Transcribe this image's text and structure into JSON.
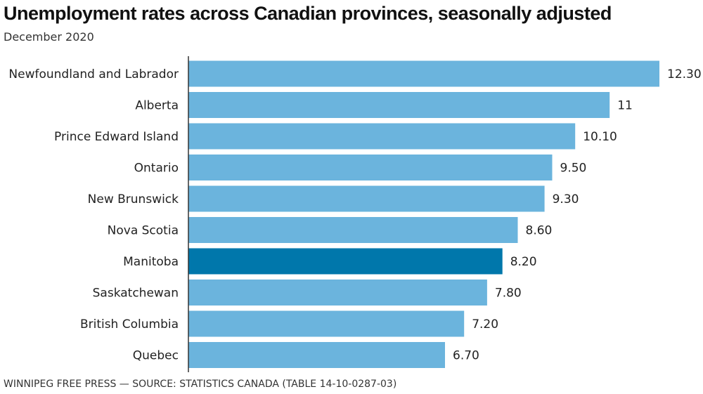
{
  "chart_data": {
    "type": "bar",
    "orientation": "horizontal",
    "title": "Unemployment rates across Canadian provinces, seasonally adjusted",
    "subtitle": "December 2020",
    "categories": [
      "Newfoundland and Labrador",
      "Alberta",
      "Prince Edward Island",
      "Ontario",
      "New Brunswick",
      "Nova Scotia",
      "Manitoba",
      "Saskatchewan",
      "British Columbia",
      "Quebec"
    ],
    "values": [
      12.3,
      11,
      10.1,
      9.5,
      9.3,
      8.6,
      8.2,
      7.8,
      7.2,
      6.7
    ],
    "value_labels": [
      "12.30",
      "11",
      "10.10",
      "9.50",
      "9.30",
      "8.60",
      "8.20",
      "7.80",
      "7.20",
      "6.70"
    ],
    "highlight": "Manitoba",
    "xlim": [
      0,
      12.3
    ],
    "xlabel": "",
    "ylabel": "",
    "grid": false,
    "legend": "none",
    "source": "WINNIPEG FREE PRESS — SOURCE: STATISTICS CANADA (TABLE 14-10-0287-03)"
  },
  "colors": {
    "bar": "#6bb4dd",
    "highlight": "#0077ab",
    "axis": "#333333"
  }
}
